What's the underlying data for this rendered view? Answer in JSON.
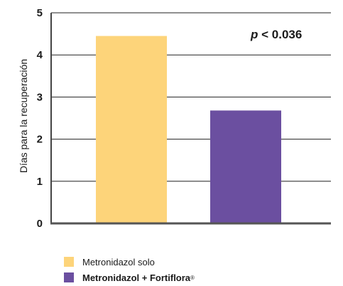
{
  "chart_data": {
    "type": "bar",
    "categories": [
      "Metronidazol solo",
      "Metronidazol + Fortiflora"
    ],
    "values": [
      4.45,
      2.68
    ],
    "colors": [
      "#fdd47a",
      "#6b4fa0"
    ],
    "ylabel": "Días para la recuperación",
    "xlabel": "",
    "ylim": [
      0,
      5
    ],
    "yticks": [
      "0",
      "1",
      "2",
      "3",
      "4",
      "5"
    ],
    "grid": true,
    "annotation": {
      "p": "p",
      "rest": " < 0.036"
    },
    "legend": {
      "placement": "bottom-left",
      "items": [
        {
          "label": "Metronidazol solo",
          "bold": false
        },
        {
          "label": "Metronidazol + Fortiflora",
          "bold": true,
          "suffix": "®"
        }
      ]
    }
  }
}
